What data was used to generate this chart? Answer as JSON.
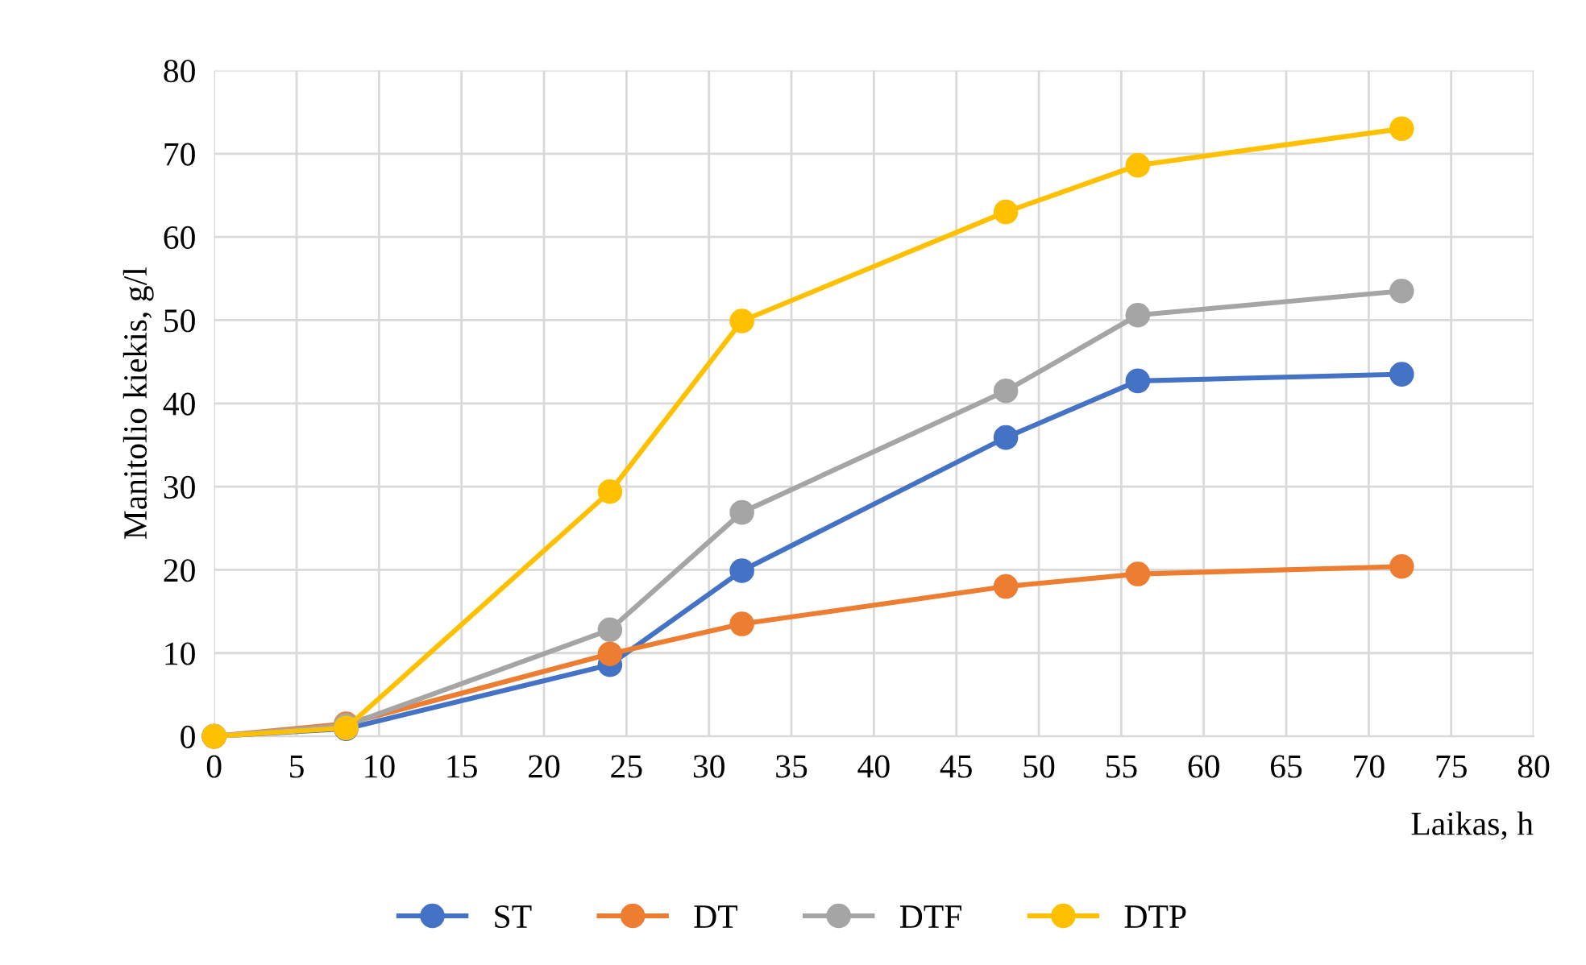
{
  "chart_data": {
    "type": "line",
    "xlabel": "Laikas, h",
    "ylabel": "Manitolio kiekis, g/l",
    "x": [
      0,
      8,
      24,
      32,
      48,
      56,
      72
    ],
    "series": [
      {
        "name": "ST",
        "color": "#4472c4",
        "values": [
          0,
          0.9,
          8.6,
          19.9,
          35.9,
          42.7,
          43.5
        ]
      },
      {
        "name": "DT",
        "color": "#ed7d31",
        "values": [
          0,
          1.5,
          9.9,
          13.5,
          18,
          19.5,
          20.4
        ]
      },
      {
        "name": "DTF",
        "color": "#a5a5a5",
        "values": [
          0,
          1.3,
          12.8,
          26.9,
          41.5,
          50.6,
          53.5
        ]
      },
      {
        "name": "DTP",
        "color": "#ffc000",
        "values": [
          0,
          1,
          29.4,
          49.9,
          63,
          68.6,
          73
        ]
      }
    ],
    "xlim": [
      0,
      80
    ],
    "xticks": [
      0,
      5,
      10,
      15,
      20,
      25,
      30,
      35,
      40,
      45,
      50,
      55,
      60,
      65,
      70,
      75,
      80
    ],
    "ylim": [
      0,
      80
    ],
    "yticks": [
      0,
      10,
      20,
      30,
      40,
      50,
      60,
      70,
      80
    ],
    "grid": true,
    "legend": "bottom",
    "marker": "circle",
    "line_style": "solid"
  }
}
